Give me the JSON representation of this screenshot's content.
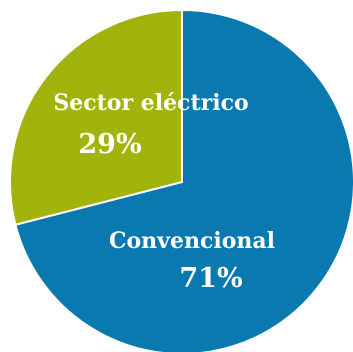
{
  "chart_data": {
    "type": "pie",
    "title": "",
    "slices": [
      {
        "label": "Convencional",
        "value": 71,
        "value_label": "71%",
        "color": "#0a79b0"
      },
      {
        "label": "Sector eléctrico",
        "value": 29,
        "value_label": "29%",
        "color": "#a2b40c"
      }
    ],
    "start_angle_deg": 0,
    "direction": "clockwise",
    "legend": "none"
  }
}
